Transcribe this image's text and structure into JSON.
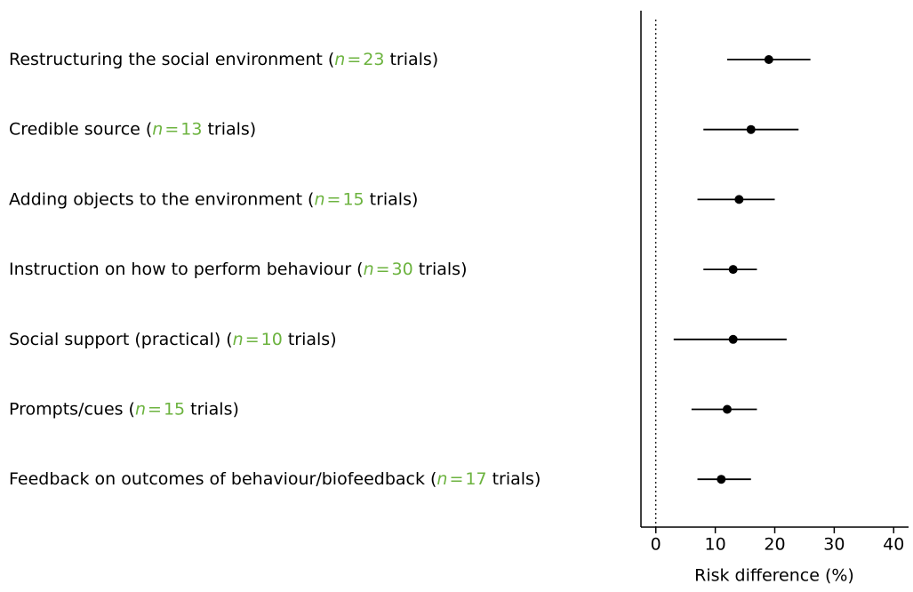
{
  "chart_data": {
    "type": "forest",
    "categories": [
      "Restructuring the social environment",
      "Credible source",
      "Adding objects to the environment",
      "Instruction on how to perform behaviour",
      "Social support (practical)",
      "Prompts/cues",
      "Feedback on outcomes of behaviour/biofeedback"
    ],
    "n_prefix": "(",
    "n_symbol": "n",
    "n_equals": "=",
    "n_suffix": "trials)",
    "n_values": [
      23,
      13,
      15,
      30,
      10,
      15,
      17
    ],
    "n_color": "#6cb33f",
    "values": [
      19,
      16,
      14,
      13,
      13,
      12,
      11
    ],
    "ci_low": [
      12,
      8,
      7,
      8,
      3,
      6,
      7
    ],
    "ci_high": [
      26,
      24,
      20,
      17,
      22,
      17,
      16
    ],
    "color": "#000000",
    "reference_line": 0,
    "xlim": [
      -2.5,
      42.5
    ],
    "xticks": [
      0,
      10,
      20,
      30,
      40
    ],
    "xlabel": "Risk difference (%)"
  }
}
